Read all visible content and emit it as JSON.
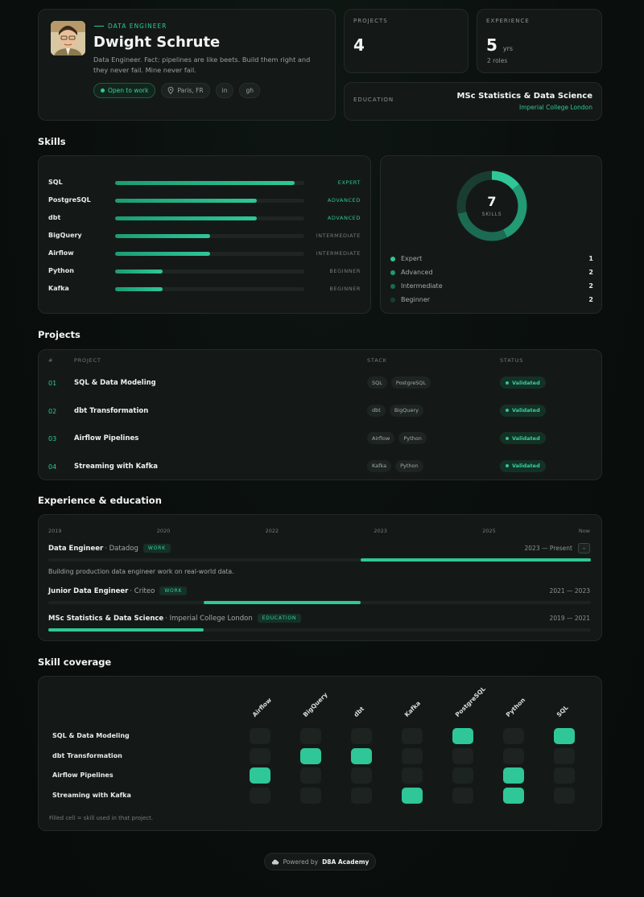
{
  "profile": {
    "role": "DATA ENGINEER",
    "name": "Dwight Schrute",
    "bio": "Data Engineer. Fact: pipelines are like beets. Build them right and they never fail. Mine never fail.",
    "status_chip": "Open to work",
    "location": "Paris, FR",
    "links": [
      "in",
      "gh"
    ]
  },
  "stats": {
    "projects_label": "PROJECTS",
    "projects_value": "4",
    "experience_label": "EXPERIENCE",
    "experience_value": "5",
    "experience_unit": "yrs",
    "experience_sub": "2 roles",
    "education_label": "EDUCATION",
    "education_title": "MSc Statistics & Data Science",
    "education_school": "Imperial College London"
  },
  "sections": {
    "skills": "Skills",
    "projects": "Projects",
    "experience": "Experience & education",
    "coverage": "Skill coverage"
  },
  "skills": [
    {
      "name": "SQL",
      "level": "EXPERT",
      "proficiency": 0.95
    },
    {
      "name": "PostgreSQL",
      "level": "ADVANCED",
      "proficiency": 0.75
    },
    {
      "name": "dbt",
      "level": "ADVANCED",
      "proficiency": 0.75
    },
    {
      "name": "BigQuery",
      "level": "INTERMEDIATE",
      "proficiency": 0.5
    },
    {
      "name": "Airflow",
      "level": "INTERMEDIATE",
      "proficiency": 0.5
    },
    {
      "name": "Python",
      "level": "BEGINNER",
      "proficiency": 0.25
    },
    {
      "name": "Kafka",
      "level": "BEGINNER",
      "proficiency": 0.25
    }
  ],
  "skill_summary": {
    "total": "7",
    "label": "SKILLS",
    "legend": [
      {
        "name": "Expert",
        "count": "1",
        "color": "#2fc797"
      },
      {
        "name": "Advanced",
        "count": "2",
        "color": "#229a74"
      },
      {
        "name": "Intermediate",
        "count": "2",
        "color": "#1b6b52"
      },
      {
        "name": "Beginner",
        "count": "2",
        "color": "#1a3d31"
      }
    ]
  },
  "projects_table": {
    "headers": [
      "#",
      "PROJECT",
      "STACK",
      "STATUS"
    ],
    "rows": [
      {
        "num": "01",
        "name": "SQL & Data Modeling",
        "stack": [
          "SQL",
          "PostgreSQL"
        ],
        "status": "Validated"
      },
      {
        "num": "02",
        "name": "dbt Transformation",
        "stack": [
          "dbt",
          "BigQuery"
        ],
        "status": "Validated"
      },
      {
        "num": "03",
        "name": "Airflow Pipelines",
        "stack": [
          "Airflow",
          "Python"
        ],
        "status": "Validated"
      },
      {
        "num": "04",
        "name": "Streaming with Kafka",
        "stack": [
          "Kafka",
          "Python"
        ],
        "status": "Validated"
      }
    ]
  },
  "timeline": {
    "years": [
      "2019",
      "2020",
      "2022",
      "2023",
      "2025",
      "Now"
    ],
    "items": [
      {
        "title": "Data Engineer",
        "org": "· Datadog",
        "badge": "WORK",
        "dates": "2023 — Present",
        "toggle": "-",
        "description": "Building production data engineer work on real-world data.",
        "start": 0.575,
        "end": 1.0
      },
      {
        "title": "Junior Data Engineer",
        "org": "· Criteo",
        "badge": "WORK",
        "dates": "2021 — 2023",
        "start": 0.286,
        "end": 0.575
      },
      {
        "title": "MSc Statistics & Data Science",
        "org": "· Imperial College London",
        "badge": "EDUCATION",
        "dates": "2019 — 2021",
        "start": 0.0,
        "end": 0.286
      }
    ]
  },
  "coverage": {
    "columns": [
      "Airflow",
      "BigQuery",
      "dbt",
      "Kafka",
      "PostgreSQL",
      "Python",
      "SQL"
    ],
    "rows": [
      {
        "name": "SQL & Data Modeling",
        "cells": [
          0,
          0,
          0,
          0,
          1,
          0,
          1
        ]
      },
      {
        "name": "dbt Transformation",
        "cells": [
          0,
          1,
          1,
          0,
          0,
          0,
          0
        ]
      },
      {
        "name": "Airflow Pipelines",
        "cells": [
          1,
          0,
          0,
          0,
          0,
          1,
          0
        ]
      },
      {
        "name": "Streaming with Kafka",
        "cells": [
          0,
          0,
          0,
          1,
          0,
          1,
          0
        ]
      }
    ],
    "note": "Filled cell = skill used in that project."
  },
  "footer": {
    "prefix": "Powered by",
    "brand": "D8A Academy"
  },
  "colors": {
    "accent": "#2fc797",
    "background": "#0a0f0d"
  }
}
